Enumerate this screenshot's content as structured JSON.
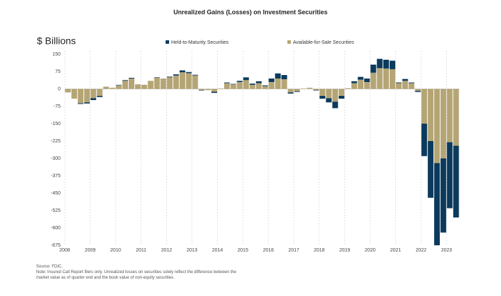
{
  "chart_data": {
    "type": "bar",
    "stacked": true,
    "title": "Unrealized Gains (Losses) on Investment Securities",
    "y_label": "$ Billions",
    "categories": [
      "2008",
      null,
      null,
      null,
      "2009",
      null,
      null,
      null,
      "2010",
      null,
      null,
      null,
      "2011",
      null,
      null,
      null,
      "2012",
      null,
      null,
      null,
      "2013",
      null,
      null,
      null,
      "2014",
      null,
      null,
      null,
      "2015",
      null,
      null,
      null,
      "2016",
      null,
      null,
      null,
      "2017",
      null,
      null,
      null,
      "2018",
      null,
      null,
      null,
      "2019",
      null,
      null,
      null,
      "2020",
      null,
      null,
      null,
      "2021",
      null,
      null,
      null,
      "2022",
      null,
      null,
      null,
      "2023",
      null
    ],
    "series": [
      {
        "name": "Held-to-Maturity Securities",
        "color": "#0b3a5c",
        "values": [
          0,
          0,
          -3,
          -5,
          -8,
          -5,
          0,
          0,
          2,
          3,
          3,
          0,
          0,
          0,
          2,
          0,
          3,
          5,
          8,
          5,
          3,
          -2,
          0,
          -5,
          0,
          3,
          2,
          5,
          12,
          5,
          8,
          3,
          15,
          22,
          18,
          -5,
          -3,
          0,
          0,
          -2,
          -12,
          -18,
          -28,
          -12,
          0,
          8,
          12,
          15,
          35,
          40,
          38,
          37,
          3,
          8,
          3,
          -5,
          -140,
          -245,
          -355,
          -320,
          -285,
          -310
        ]
      },
      {
        "name": "Available-for-Sale Securities",
        "color": "#b5a575",
        "values": [
          -15,
          -42,
          -62,
          -58,
          -40,
          -30,
          10,
          5,
          15,
          35,
          45,
          20,
          18,
          35,
          48,
          45,
          50,
          58,
          72,
          68,
          58,
          -5,
          -5,
          -12,
          2,
          25,
          20,
          30,
          38,
          18,
          25,
          12,
          30,
          45,
          42,
          -15,
          -10,
          2,
          5,
          -5,
          -30,
          -40,
          -55,
          -30,
          3,
          25,
          40,
          30,
          70,
          90,
          88,
          85,
          25,
          35,
          25,
          -8,
          -150,
          -225,
          -320,
          -300,
          -230,
          -245
        ]
      }
    ],
    "ylim": [
      -675,
      150
    ],
    "yticks": [
      150,
      75,
      0,
      -75,
      -150,
      -225,
      -300,
      -375,
      -450,
      -525,
      -600,
      -675
    ],
    "notes": [
      "Source: FDIC.",
      "Note: Insured Call Report filers only. Unrealized losses on securities solely reflect the difference between the",
      "market value as of quarter end and the book value of non-equity securities."
    ]
  }
}
